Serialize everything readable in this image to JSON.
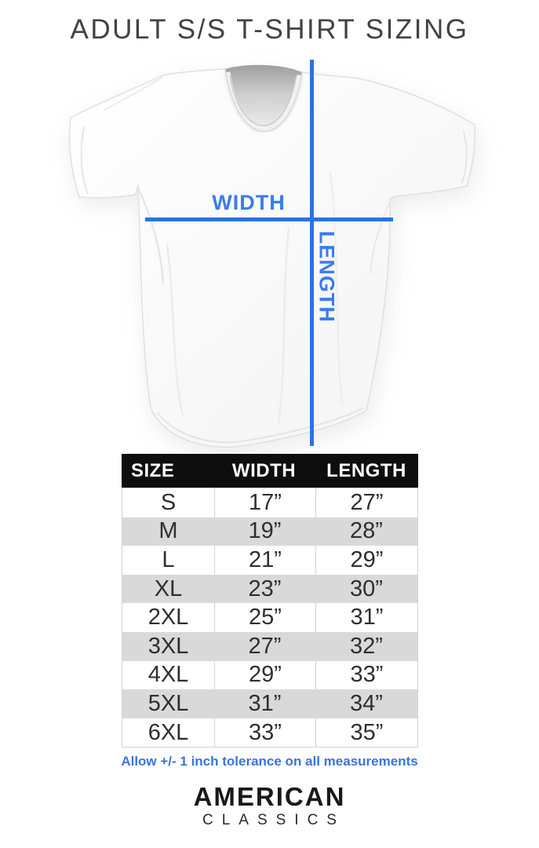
{
  "title": "ADULT S/S T-SHIRT SIZING",
  "diagram": {
    "width_label": "WIDTH",
    "length_label": "LENGTH"
  },
  "chart_data": {
    "type": "table",
    "title": "ADULT S/S T-SHIRT SIZING",
    "columns": [
      "SIZE",
      "WIDTH",
      "LENGTH"
    ],
    "rows": [
      [
        "S",
        "17”",
        "27”"
      ],
      [
        "M",
        "19”",
        "28”"
      ],
      [
        "L",
        "21”",
        "29”"
      ],
      [
        "XL",
        "23”",
        "30”"
      ],
      [
        "2XL",
        "25”",
        "31”"
      ],
      [
        "3XL",
        "27”",
        "32”"
      ],
      [
        "4XL",
        "29”",
        "33”"
      ],
      [
        "5XL",
        "31”",
        "34”"
      ],
      [
        "6XL",
        "33”",
        "35”"
      ]
    ],
    "footnote": "Allow +/- 1 inch tolerance on all measurements"
  },
  "footer_note": "Allow +/- 1 inch tolerance on all measurements",
  "logo": {
    "line1": "AMERICAN",
    "line2": "CLASSICS"
  },
  "colors": {
    "measure_line_blue": "#2c72e4",
    "measure_label_blue": "#3a7bee",
    "note_blue": "#3b74da",
    "table_header_bg": "#0e0e0e",
    "table_header_text": "#ffffff",
    "row_alt_bg": "#d9d9d9",
    "table_border": "#d3d3d3",
    "body_text": "#2f2f2f",
    "title_text": "#424242",
    "logo_text": "#191919"
  }
}
